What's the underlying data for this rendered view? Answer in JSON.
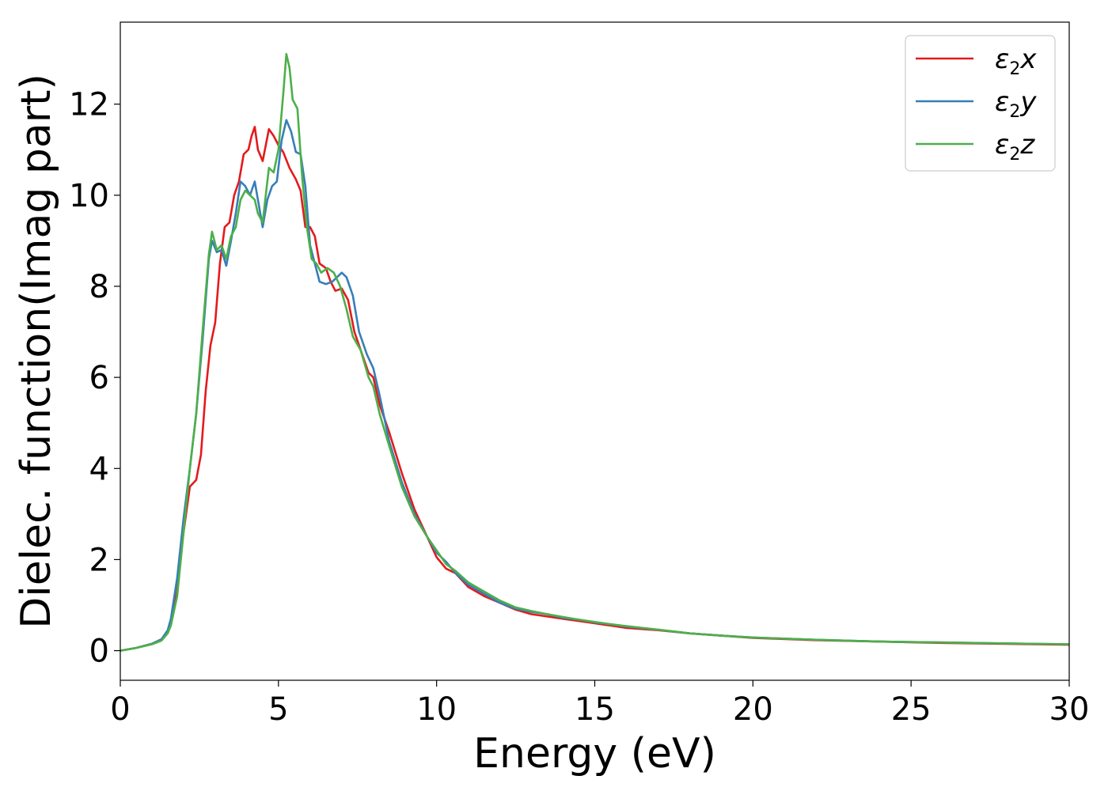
{
  "chart_data": {
    "type": "line",
    "xlabel": "Energy (eV)",
    "ylabel": "Dielec. function(Imag part)",
    "xlim": [
      0,
      30
    ],
    "ylim": [
      -0.65,
      13.8
    ],
    "xticks": [
      0,
      5,
      10,
      15,
      20,
      25,
      30
    ],
    "xtick_labels": [
      "0",
      "5",
      "10",
      "15",
      "20",
      "25",
      "30"
    ],
    "yticks": [
      0,
      2,
      4,
      6,
      8,
      10,
      12
    ],
    "ytick_labels": [
      "0",
      "2",
      "4",
      "6",
      "8",
      "10",
      "12"
    ],
    "grid": false,
    "legend_position": "top-right",
    "series": [
      {
        "name": "ε2x",
        "legend_base": "ε",
        "legend_sub": "2",
        "legend_var": "x",
        "color": "#e41a1c",
        "points": [
          [
            0,
            0
          ],
          [
            0.5,
            0.06
          ],
          [
            1.0,
            0.15
          ],
          [
            1.3,
            0.25
          ],
          [
            1.5,
            0.4
          ],
          [
            1.6,
            0.6
          ],
          [
            1.8,
            1.3
          ],
          [
            2.0,
            2.6
          ],
          [
            2.2,
            3.6
          ],
          [
            2.4,
            3.75
          ],
          [
            2.55,
            4.3
          ],
          [
            2.7,
            5.7
          ],
          [
            2.85,
            6.7
          ],
          [
            3.0,
            7.2
          ],
          [
            3.15,
            8.5
          ],
          [
            3.3,
            9.3
          ],
          [
            3.45,
            9.4
          ],
          [
            3.6,
            10.0
          ],
          [
            3.75,
            10.3
          ],
          [
            3.9,
            10.9
          ],
          [
            4.05,
            11.0
          ],
          [
            4.15,
            11.3
          ],
          [
            4.25,
            11.5
          ],
          [
            4.35,
            11.0
          ],
          [
            4.5,
            10.75
          ],
          [
            4.7,
            11.45
          ],
          [
            4.85,
            11.3
          ],
          [
            5.0,
            11.1
          ],
          [
            5.15,
            10.95
          ],
          [
            5.35,
            10.6
          ],
          [
            5.55,
            10.35
          ],
          [
            5.7,
            10.1
          ],
          [
            5.85,
            9.3
          ],
          [
            6.0,
            9.3
          ],
          [
            6.15,
            9.1
          ],
          [
            6.3,
            8.5
          ],
          [
            6.5,
            8.4
          ],
          [
            6.65,
            8.1
          ],
          [
            6.8,
            7.9
          ],
          [
            7.0,
            7.95
          ],
          [
            7.2,
            7.7
          ],
          [
            7.4,
            7.0
          ],
          [
            7.6,
            6.6
          ],
          [
            7.85,
            6.1
          ],
          [
            8.0,
            6.0
          ],
          [
            8.2,
            5.4
          ],
          [
            8.5,
            4.8
          ],
          [
            8.9,
            3.9
          ],
          [
            9.3,
            3.1
          ],
          [
            9.7,
            2.5
          ],
          [
            10.0,
            2.05
          ],
          [
            10.3,
            1.8
          ],
          [
            10.6,
            1.7
          ],
          [
            11.0,
            1.4
          ],
          [
            11.5,
            1.2
          ],
          [
            12.0,
            1.05
          ],
          [
            12.5,
            0.9
          ],
          [
            13.0,
            0.8
          ],
          [
            13.5,
            0.75
          ],
          [
            14.0,
            0.7
          ],
          [
            14.5,
            0.65
          ],
          [
            15.0,
            0.6
          ],
          [
            15.5,
            0.55
          ],
          [
            16.0,
            0.5
          ],
          [
            17.0,
            0.45
          ],
          [
            18.0,
            0.38
          ],
          [
            19.0,
            0.33
          ],
          [
            20.0,
            0.28
          ],
          [
            22.0,
            0.23
          ],
          [
            24.0,
            0.2
          ],
          [
            26.0,
            0.17
          ],
          [
            28.0,
            0.15
          ],
          [
            30.0,
            0.13
          ]
        ]
      },
      {
        "name": "ε2y",
        "legend_base": "ε",
        "legend_sub": "2",
        "legend_var": "y",
        "color": "#377eb8",
        "points": [
          [
            0,
            0
          ],
          [
            0.5,
            0.06
          ],
          [
            1.0,
            0.15
          ],
          [
            1.3,
            0.25
          ],
          [
            1.5,
            0.45
          ],
          [
            1.6,
            0.7
          ],
          [
            1.8,
            1.6
          ],
          [
            2.0,
            2.9
          ],
          [
            2.2,
            4.0
          ],
          [
            2.4,
            5.2
          ],
          [
            2.6,
            6.8
          ],
          [
            2.8,
            8.6
          ],
          [
            2.9,
            9.0
          ],
          [
            3.05,
            8.75
          ],
          [
            3.2,
            8.8
          ],
          [
            3.35,
            8.45
          ],
          [
            3.5,
            9.0
          ],
          [
            3.65,
            9.6
          ],
          [
            3.8,
            10.3
          ],
          [
            3.95,
            10.2
          ],
          [
            4.1,
            10.0
          ],
          [
            4.25,
            10.3
          ],
          [
            4.35,
            9.9
          ],
          [
            4.5,
            9.3
          ],
          [
            4.65,
            9.9
          ],
          [
            4.8,
            10.2
          ],
          [
            4.95,
            10.3
          ],
          [
            5.1,
            11.2
          ],
          [
            5.25,
            11.65
          ],
          [
            5.4,
            11.4
          ],
          [
            5.55,
            10.95
          ],
          [
            5.7,
            10.9
          ],
          [
            5.85,
            10.2
          ],
          [
            6.0,
            8.9
          ],
          [
            6.15,
            8.5
          ],
          [
            6.3,
            8.1
          ],
          [
            6.5,
            8.05
          ],
          [
            6.7,
            8.1
          ],
          [
            6.85,
            8.2
          ],
          [
            7.0,
            8.3
          ],
          [
            7.15,
            8.2
          ],
          [
            7.35,
            7.8
          ],
          [
            7.55,
            7.0
          ],
          [
            7.8,
            6.5
          ],
          [
            8.0,
            6.2
          ],
          [
            8.2,
            5.6
          ],
          [
            8.5,
            4.6
          ],
          [
            8.9,
            3.7
          ],
          [
            9.3,
            3.0
          ],
          [
            9.7,
            2.5
          ],
          [
            10.0,
            2.15
          ],
          [
            10.3,
            1.95
          ],
          [
            10.6,
            1.7
          ],
          [
            11.0,
            1.45
          ],
          [
            11.5,
            1.25
          ],
          [
            12.0,
            1.05
          ],
          [
            12.5,
            0.92
          ],
          [
            13.0,
            0.85
          ],
          [
            13.5,
            0.8
          ],
          [
            14.0,
            0.72
          ],
          [
            14.5,
            0.68
          ],
          [
            15.0,
            0.62
          ],
          [
            15.5,
            0.58
          ],
          [
            16.0,
            0.53
          ],
          [
            17.0,
            0.46
          ],
          [
            18.0,
            0.38
          ],
          [
            19.0,
            0.33
          ],
          [
            20.0,
            0.29
          ],
          [
            22.0,
            0.24
          ],
          [
            24.0,
            0.2
          ],
          [
            26.0,
            0.18
          ],
          [
            28.0,
            0.16
          ],
          [
            30.0,
            0.14
          ]
        ]
      },
      {
        "name": "ε2z",
        "legend_base": "ε",
        "legend_sub": "2",
        "legend_var": "z",
        "color": "#4daf4a",
        "points": [
          [
            0,
            0
          ],
          [
            0.5,
            0.06
          ],
          [
            1.0,
            0.14
          ],
          [
            1.3,
            0.22
          ],
          [
            1.5,
            0.38
          ],
          [
            1.6,
            0.55
          ],
          [
            1.8,
            1.2
          ],
          [
            2.0,
            2.6
          ],
          [
            2.2,
            4.0
          ],
          [
            2.4,
            5.2
          ],
          [
            2.6,
            7.0
          ],
          [
            2.8,
            8.7
          ],
          [
            2.9,
            9.2
          ],
          [
            3.05,
            8.8
          ],
          [
            3.2,
            8.9
          ],
          [
            3.35,
            8.6
          ],
          [
            3.5,
            9.1
          ],
          [
            3.65,
            9.3
          ],
          [
            3.8,
            9.9
          ],
          [
            3.95,
            10.1
          ],
          [
            4.1,
            10.0
          ],
          [
            4.25,
            9.9
          ],
          [
            4.35,
            9.6
          ],
          [
            4.5,
            9.4
          ],
          [
            4.6,
            10.0
          ],
          [
            4.7,
            10.6
          ],
          [
            4.85,
            10.5
          ],
          [
            5.0,
            11.0
          ],
          [
            5.15,
            12.2
          ],
          [
            5.25,
            13.1
          ],
          [
            5.35,
            12.8
          ],
          [
            5.45,
            12.1
          ],
          [
            5.6,
            11.9
          ],
          [
            5.75,
            10.4
          ],
          [
            5.9,
            9.3
          ],
          [
            6.05,
            8.6
          ],
          [
            6.2,
            8.5
          ],
          [
            6.35,
            8.3
          ],
          [
            6.55,
            8.4
          ],
          [
            6.75,
            8.3
          ],
          [
            6.95,
            8.0
          ],
          [
            7.15,
            7.5
          ],
          [
            7.35,
            6.9
          ],
          [
            7.6,
            6.6
          ],
          [
            7.85,
            6.0
          ],
          [
            8.0,
            5.8
          ],
          [
            8.2,
            5.2
          ],
          [
            8.5,
            4.5
          ],
          [
            8.9,
            3.6
          ],
          [
            9.3,
            2.95
          ],
          [
            9.7,
            2.5
          ],
          [
            10.0,
            2.2
          ],
          [
            10.3,
            1.9
          ],
          [
            10.6,
            1.75
          ],
          [
            11.0,
            1.5
          ],
          [
            11.5,
            1.3
          ],
          [
            12.0,
            1.1
          ],
          [
            12.5,
            0.95
          ],
          [
            13.0,
            0.87
          ],
          [
            13.5,
            0.8
          ],
          [
            14.0,
            0.74
          ],
          [
            14.5,
            0.68
          ],
          [
            15.0,
            0.63
          ],
          [
            15.5,
            0.58
          ],
          [
            16.0,
            0.54
          ],
          [
            17.0,
            0.46
          ],
          [
            18.0,
            0.38
          ],
          [
            19.0,
            0.33
          ],
          [
            20.0,
            0.29
          ],
          [
            22.0,
            0.24
          ],
          [
            24.0,
            0.2
          ],
          [
            26.0,
            0.18
          ],
          [
            28.0,
            0.16
          ],
          [
            30.0,
            0.14
          ]
        ]
      }
    ]
  }
}
